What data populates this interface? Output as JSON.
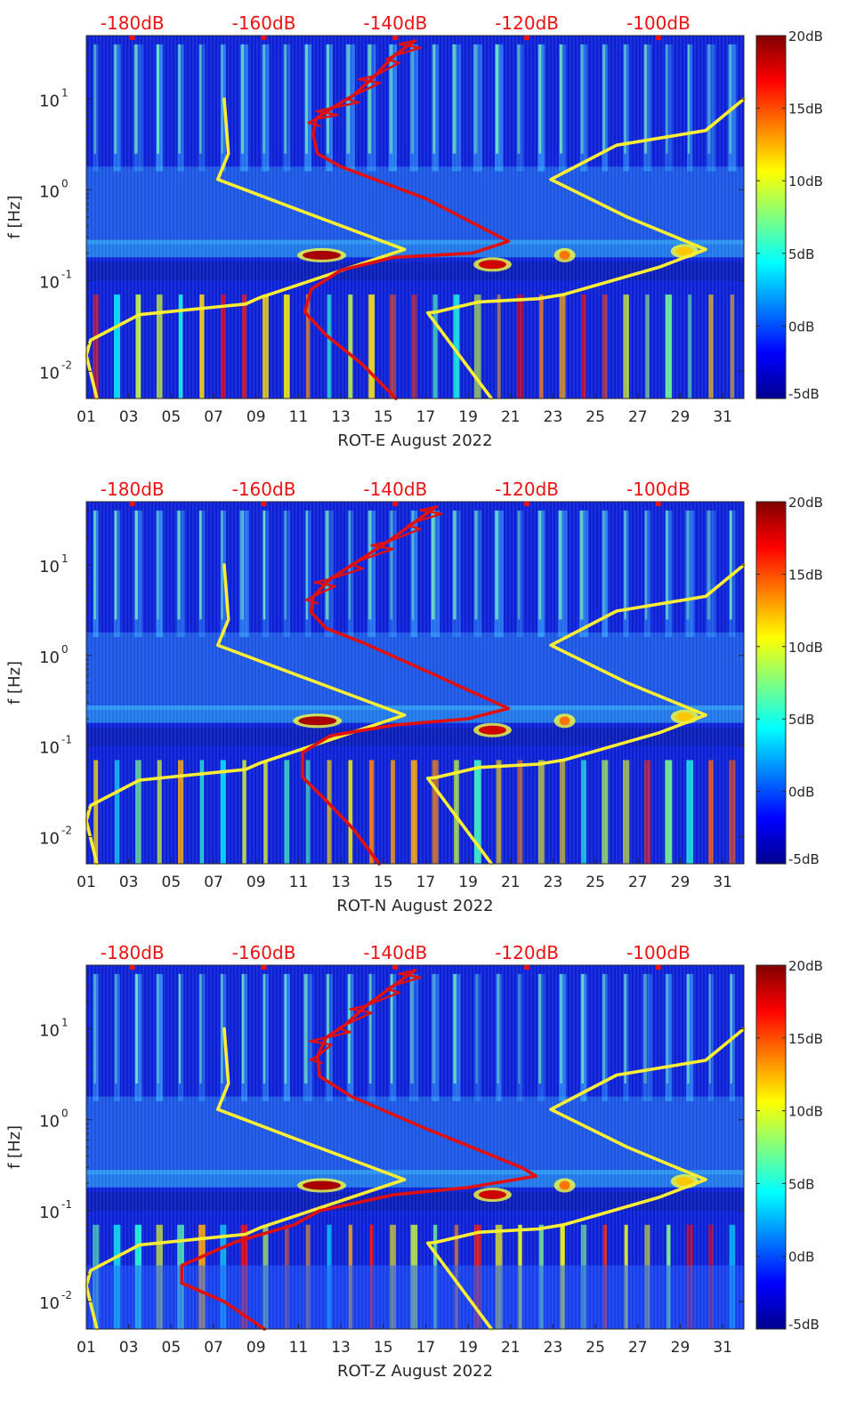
{
  "chart_data": [
    {
      "type": "heatmap",
      "xlabel": "ROT-E August 2022",
      "ylabel": "f [Hz]",
      "xticks": [
        "01",
        "03",
        "05",
        "07",
        "09",
        "11",
        "13",
        "15",
        "17",
        "19",
        "21",
        "23",
        "25",
        "27",
        "29",
        "31"
      ],
      "xlim": [
        1,
        32
      ],
      "yscale": "log",
      "ylim": [
        0.005,
        50
      ],
      "yticks": [
        {
          "value": 0.01,
          "label": "10"
        },
        {
          "value": 0.1,
          "label": "10"
        },
        {
          "value": 1,
          "label": "10"
        },
        {
          "value": 10,
          "label": "10"
        }
      ],
      "ytick_exponents": [
        "-2",
        "-1",
        "0",
        "1"
      ],
      "colorbar": {
        "range": [
          -5,
          20
        ],
        "ticks": [
          "20dB",
          "15dB",
          "10dB",
          "5dB",
          "0dB",
          "-5dB"
        ]
      },
      "top_axis": {
        "labels": [
          "-180dB",
          "-160dB",
          "-140dB",
          "-120dB",
          "-100dB"
        ],
        "positions_day": [
          3.5,
          13.5,
          23.5,
          33.5,
          43.5
        ]
      },
      "bands": [
        {
          "f": 0.19,
          "days": [
            11.2,
            13.0
          ],
          "level": 19
        },
        {
          "f": 0.15,
          "days": [
            19.5,
            20.8
          ],
          "level": 18
        },
        {
          "f": 0.19,
          "days": [
            23.3,
            23.8
          ],
          "level": 14
        },
        {
          "f": 0.21,
          "days": [
            28.8,
            29.6
          ],
          "level": 12
        }
      ],
      "series": [
        {
          "name": "noise-model-low",
          "color": "#ffee33",
          "points": [
            [
              7.5,
              10
            ],
            [
              7.7,
              2.5
            ],
            [
              7.2,
              1.3
            ],
            [
              11,
              0.6
            ],
            [
              16,
              0.22
            ],
            [
              9.2,
              0.065
            ],
            [
              8.5,
              0.055
            ],
            [
              3.5,
              0.042
            ],
            [
              1.2,
              0.022
            ],
            [
              1,
              0.015
            ],
            [
              1.5,
              0.005
            ]
          ]
        },
        {
          "name": "noise-model-high",
          "color": "#ffee33",
          "points": [
            [
              32,
              10
            ],
            [
              30.2,
              4.5
            ],
            [
              26,
              3.1
            ],
            [
              22.9,
              1.3
            ],
            [
              26.5,
              0.5
            ],
            [
              30.2,
              0.22
            ],
            [
              28,
              0.14
            ],
            [
              23.5,
              0.07
            ],
            [
              22.3,
              0.063
            ],
            [
              19.5,
              0.058
            ],
            [
              17.5,
              0.045
            ],
            [
              17.1,
              0.044
            ],
            [
              20.1,
              0.005
            ]
          ]
        },
        {
          "name": "station-median",
          "color": "#e01010",
          "points": [
            [
              16.5,
              44
            ],
            [
              15.5,
              30
            ],
            [
              14.6,
              18
            ],
            [
              13.6,
              11
            ],
            [
              12.6,
              8
            ],
            [
              11.8,
              6
            ],
            [
              11.7,
              4
            ],
            [
              11.9,
              2.5
            ],
            [
              13,
              1.8
            ],
            [
              17,
              0.8
            ],
            [
              20.9,
              0.27
            ],
            [
              19.2,
              0.2
            ],
            [
              15.5,
              0.18
            ],
            [
              13,
              0.13
            ],
            [
              11.6,
              0.08
            ],
            [
              11.3,
              0.045
            ],
            [
              12.3,
              0.025
            ],
            [
              14,
              0.012
            ],
            [
              15.6,
              0.005
            ]
          ]
        }
      ]
    },
    {
      "type": "heatmap",
      "xlabel": "ROT-N August 2022",
      "ylabel": "f [Hz]",
      "xticks": [
        "01",
        "03",
        "05",
        "07",
        "09",
        "11",
        "13",
        "15",
        "17",
        "19",
        "21",
        "23",
        "25",
        "27",
        "29",
        "31"
      ],
      "xlim": [
        1,
        32
      ],
      "yscale": "log",
      "ylim": [
        0.005,
        50
      ],
      "yticks": [
        {
          "value": 0.01,
          "label": "10"
        },
        {
          "value": 0.1,
          "label": "10"
        },
        {
          "value": 1,
          "label": "10"
        },
        {
          "value": 10,
          "label": "10"
        }
      ],
      "ytick_exponents": [
        "-2",
        "-1",
        "0",
        "1"
      ],
      "colorbar": {
        "range": [
          -5,
          20
        ],
        "ticks": [
          "20dB",
          "15dB",
          "10dB",
          "5dB",
          "0dB",
          "-5dB"
        ]
      },
      "top_axis": {
        "labels": [
          "-180dB",
          "-160dB",
          "-140dB",
          "-120dB",
          "-100dB"
        ],
        "positions_day": [
          3.5,
          13.5,
          23.5,
          33.5,
          43.5
        ]
      },
      "bands": [
        {
          "f": 0.19,
          "days": [
            11.0,
            12.8
          ],
          "level": 19
        },
        {
          "f": 0.15,
          "days": [
            19.5,
            20.8
          ],
          "level": 18
        },
        {
          "f": 0.19,
          "days": [
            23.3,
            23.8
          ],
          "level": 14
        },
        {
          "f": 0.21,
          "days": [
            28.8,
            29.6
          ],
          "level": 12
        }
      ],
      "series": [
        {
          "name": "noise-model-low",
          "color": "#ffee33",
          "points": [
            [
              7.5,
              10
            ],
            [
              7.7,
              2.5
            ],
            [
              7.2,
              1.3
            ],
            [
              11,
              0.6
            ],
            [
              16,
              0.22
            ],
            [
              9.2,
              0.065
            ],
            [
              8.5,
              0.055
            ],
            [
              3.5,
              0.042
            ],
            [
              1.2,
              0.022
            ],
            [
              1,
              0.015
            ],
            [
              1.5,
              0.005
            ]
          ]
        },
        {
          "name": "noise-model-high",
          "color": "#ffee33",
          "points": [
            [
              32,
              10
            ],
            [
              30.2,
              4.5
            ],
            [
              26,
              3.1
            ],
            [
              22.9,
              1.3
            ],
            [
              26.5,
              0.5
            ],
            [
              30.2,
              0.22
            ],
            [
              28,
              0.14
            ],
            [
              23.5,
              0.07
            ],
            [
              22.3,
              0.063
            ],
            [
              19.5,
              0.058
            ],
            [
              17.5,
              0.045
            ],
            [
              17.1,
              0.044
            ],
            [
              20.1,
              0.005
            ]
          ]
        },
        {
          "name": "station-median",
          "color": "#e01010",
          "points": [
            [
              17.5,
              44
            ],
            [
              16.5,
              30
            ],
            [
              15.2,
              18
            ],
            [
              13.8,
              11
            ],
            [
              12.5,
              7
            ],
            [
              11.7,
              4.5
            ],
            [
              11.6,
              3
            ],
            [
              12.3,
              2
            ],
            [
              14,
              1.4
            ],
            [
              17.5,
              0.6
            ],
            [
              20.9,
              0.26
            ],
            [
              19,
              0.2
            ],
            [
              15.5,
              0.17
            ],
            [
              12.5,
              0.13
            ],
            [
              11.2,
              0.085
            ],
            [
              11.2,
              0.045
            ],
            [
              12.3,
              0.025
            ],
            [
              13.6,
              0.012
            ],
            [
              14.8,
              0.005
            ]
          ]
        }
      ]
    },
    {
      "type": "heatmap",
      "xlabel": "ROT-Z August 2022",
      "ylabel": "f [Hz]",
      "xticks": [
        "01",
        "03",
        "05",
        "07",
        "09",
        "11",
        "13",
        "15",
        "17",
        "19",
        "21",
        "23",
        "25",
        "27",
        "29",
        "31"
      ],
      "xlim": [
        1,
        32
      ],
      "yscale": "log",
      "ylim": [
        0.005,
        50
      ],
      "yticks": [
        {
          "value": 0.01,
          "label": "10"
        },
        {
          "value": 0.1,
          "label": "10"
        },
        {
          "value": 1,
          "label": "10"
        },
        {
          "value": 10,
          "label": "10"
        }
      ],
      "ytick_exponents": [
        "-2",
        "-1",
        "0",
        "1"
      ],
      "colorbar": {
        "range": [
          -5,
          20
        ],
        "ticks": [
          "20dB",
          "15dB",
          "10dB",
          "5dB",
          "0dB",
          "-5dB"
        ]
      },
      "top_axis": {
        "labels": [
          "-180dB",
          "-160dB",
          "-140dB",
          "-120dB",
          "-100dB"
        ],
        "positions_day": [
          3.5,
          13.5,
          23.5,
          33.5,
          43.5
        ]
      },
      "bands": [
        {
          "f": 0.19,
          "days": [
            11.2,
            13.0
          ],
          "level": 19
        },
        {
          "f": 0.15,
          "days": [
            19.5,
            20.8
          ],
          "level": 18
        },
        {
          "f": 0.19,
          "days": [
            23.3,
            23.8
          ],
          "level": 14
        },
        {
          "f": 0.21,
          "days": [
            28.8,
            29.6
          ],
          "level": 12
        }
      ],
      "series": [
        {
          "name": "noise-model-low",
          "color": "#ffee33",
          "points": [
            [
              7.5,
              10
            ],
            [
              7.7,
              2.5
            ],
            [
              7.2,
              1.3
            ],
            [
              11,
              0.6
            ],
            [
              16,
              0.22
            ],
            [
              9.2,
              0.065
            ],
            [
              8.5,
              0.055
            ],
            [
              3.5,
              0.042
            ],
            [
              1.2,
              0.022
            ],
            [
              1,
              0.015
            ],
            [
              1.5,
              0.005
            ]
          ]
        },
        {
          "name": "noise-model-high",
          "color": "#ffee33",
          "points": [
            [
              32,
              10
            ],
            [
              30.2,
              4.5
            ],
            [
              26,
              3.1
            ],
            [
              22.9,
              1.3
            ],
            [
              26.5,
              0.5
            ],
            [
              30.2,
              0.22
            ],
            [
              28,
              0.14
            ],
            [
              23.5,
              0.07
            ],
            [
              22.3,
              0.063
            ],
            [
              19.5,
              0.058
            ],
            [
              17.5,
              0.045
            ],
            [
              17.1,
              0.044
            ],
            [
              20.1,
              0.005
            ]
          ]
        },
        {
          "name": "station-median",
          "color": "#e01010",
          "points": [
            [
              16.5,
              44
            ],
            [
              15.5,
              30
            ],
            [
              14.2,
              18
            ],
            [
              13.2,
              11
            ],
            [
              12.3,
              8
            ],
            [
              11.9,
              5
            ],
            [
              12,
              3
            ],
            [
              13.5,
              1.8
            ],
            [
              17,
              0.8
            ],
            [
              21.5,
              0.3
            ],
            [
              22.2,
              0.24
            ],
            [
              19,
              0.18
            ],
            [
              15.5,
              0.15
            ],
            [
              12,
              0.1
            ],
            [
              10.8,
              0.07
            ],
            [
              8,
              0.045
            ],
            [
              5.5,
              0.025
            ],
            [
              5.5,
              0.016
            ],
            [
              7.5,
              0.01
            ],
            [
              9.4,
              0.005
            ]
          ]
        }
      ]
    }
  ]
}
